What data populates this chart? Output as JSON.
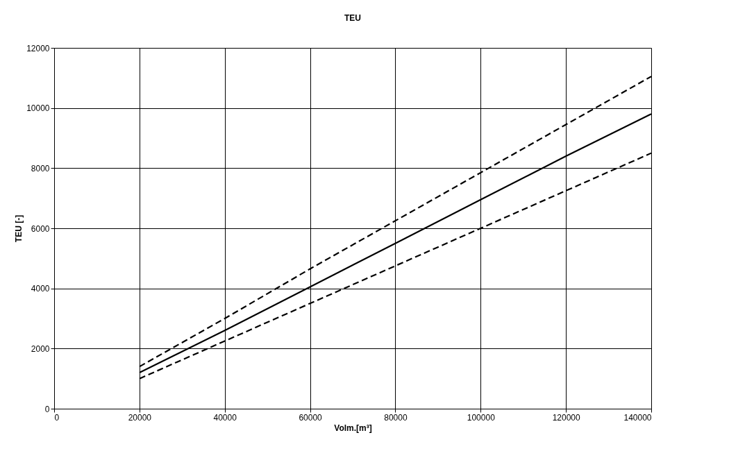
{
  "chart_data": {
    "type": "line",
    "title": "TEU",
    "xlabel": "Volm.[m³]",
    "ylabel": "TEU [-]",
    "x": [
      20000,
      40000,
      60000,
      80000,
      100000,
      120000,
      140000
    ],
    "series": [
      {
        "color": "#000000",
        "line_style": "dashed",
        "values": [
          1400,
          3000,
          4650,
          6250,
          7850,
          9450,
          11050
        ]
      },
      {
        "color": "#000000",
        "line_style": "solid",
        "values": [
          1200,
          2600,
          4050,
          5500,
          6950,
          8400,
          9800
        ]
      },
      {
        "color": "#000000",
        "line_style": "dashed",
        "values": [
          1000,
          2250,
          3500,
          4750,
          6000,
          7250,
          8500
        ]
      }
    ],
    "xlim": [
      0,
      140000
    ],
    "xticks": [
      0,
      20000,
      40000,
      60000,
      80000,
      100000,
      120000,
      140000
    ],
    "ylim": [
      0,
      12000
    ],
    "yticks": [
      0,
      2000,
      4000,
      6000,
      8000,
      10000,
      12000
    ],
    "grid": true,
    "legend": false,
    "marker": "none"
  }
}
